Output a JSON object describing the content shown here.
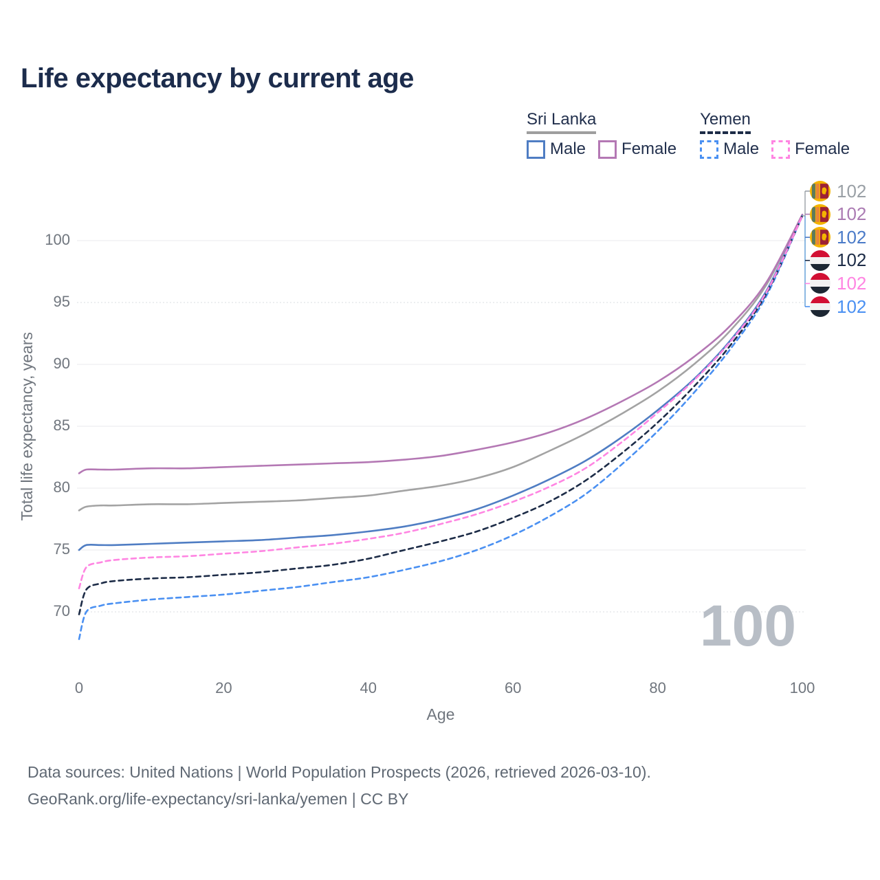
{
  "title": "Life expectancy by current age",
  "legend": {
    "groups": [
      {
        "country": "Sri Lanka",
        "line_style": "solid",
        "underline_color": "#9e9e9e",
        "items": [
          {
            "label": "Male",
            "color": "#4f7dc3",
            "dashed": false
          },
          {
            "label": "Female",
            "color": "#b478b4",
            "dashed": false
          }
        ]
      },
      {
        "country": "Yemen",
        "line_style": "dashed",
        "underline_color": "#1d2c47",
        "items": [
          {
            "label": "Male",
            "color": "#4a90f2",
            "dashed": true
          },
          {
            "label": "Female",
            "color": "#ff85e2",
            "dashed": true
          }
        ]
      }
    ]
  },
  "chart_data": {
    "type": "line",
    "title": "Life expectancy by current age",
    "xlabel": "Age",
    "ylabel": "Total life expectancy, years",
    "x": [
      0,
      1,
      3,
      5,
      10,
      15,
      20,
      25,
      30,
      35,
      40,
      45,
      50,
      55,
      60,
      65,
      70,
      75,
      80,
      85,
      90,
      95,
      100
    ],
    "xlim": [
      0,
      100
    ],
    "ylim": [
      66,
      103
    ],
    "x_ticks": [
      0,
      20,
      40,
      60,
      80,
      100
    ],
    "y_ticks": [
      70,
      75,
      80,
      85,
      90,
      95,
      100
    ],
    "dotted_gridlines": [
      70,
      95
    ],
    "grid": "horizontal",
    "legend_position": "top-right",
    "series": [
      {
        "name": "Sri Lanka — All",
        "country": "Sri Lanka",
        "sex": "all",
        "line_style": "solid",
        "color": "#a3a3a3",
        "values": [
          78.2,
          78.5,
          78.6,
          78.6,
          78.7,
          78.7,
          78.8,
          78.9,
          79.0,
          79.2,
          79.4,
          79.8,
          80.2,
          80.8,
          81.7,
          83.0,
          84.4,
          86.0,
          87.8,
          90.0,
          92.7,
          96.4,
          102.1
        ]
      },
      {
        "name": "Sri Lanka — Male",
        "country": "Sri Lanka",
        "sex": "male",
        "line_style": "solid",
        "color": "#4f7dc3",
        "values": [
          75.0,
          75.4,
          75.4,
          75.4,
          75.5,
          75.6,
          75.7,
          75.8,
          76.0,
          76.2,
          76.5,
          76.9,
          77.5,
          78.3,
          79.4,
          80.7,
          82.2,
          84.1,
          86.3,
          88.8,
          91.9,
          95.9,
          102.0
        ]
      },
      {
        "name": "Sri Lanka — Female",
        "country": "Sri Lanka",
        "sex": "female",
        "line_style": "solid",
        "color": "#b478b4",
        "values": [
          81.2,
          81.5,
          81.5,
          81.5,
          81.6,
          81.6,
          81.7,
          81.8,
          81.9,
          82.0,
          82.1,
          82.3,
          82.6,
          83.1,
          83.7,
          84.5,
          85.6,
          87.0,
          88.6,
          90.6,
          93.1,
          96.6,
          102.1
        ]
      },
      {
        "name": "Yemen — Male",
        "country": "Yemen",
        "sex": "male",
        "line_style": "dashed",
        "color": "#4a90f2",
        "values": [
          67.8,
          70.0,
          70.5,
          70.7,
          71.0,
          71.2,
          71.4,
          71.7,
          72.0,
          72.4,
          72.8,
          73.4,
          74.1,
          75.0,
          76.2,
          77.7,
          79.5,
          81.9,
          84.6,
          87.7,
          91.2,
          95.5,
          102.0
        ]
      },
      {
        "name": "Yemen — All",
        "country": "Yemen",
        "sex": "all",
        "line_style": "dashed",
        "color": "#1d2c47",
        "values": [
          69.8,
          71.8,
          72.3,
          72.5,
          72.7,
          72.8,
          73.0,
          73.2,
          73.5,
          73.8,
          74.3,
          75.0,
          75.7,
          76.5,
          77.6,
          78.9,
          80.6,
          82.8,
          85.3,
          88.2,
          91.5,
          95.7,
          102.0
        ]
      },
      {
        "name": "Yemen — Female",
        "country": "Yemen",
        "sex": "female",
        "line_style": "dashed",
        "color": "#ff85e2",
        "values": [
          71.9,
          73.6,
          74.0,
          74.2,
          74.4,
          74.5,
          74.7,
          74.9,
          75.2,
          75.5,
          75.9,
          76.4,
          77.1,
          77.9,
          78.9,
          80.1,
          81.6,
          83.7,
          86.1,
          88.7,
          91.8,
          95.8,
          102.0
        ]
      }
    ]
  },
  "endpoint_labels": {
    "rows": [
      {
        "flag": "lk",
        "country": "Sri Lanka",
        "value": "102",
        "color": "#9aa0a6"
      },
      {
        "flag": "lk",
        "country": "Sri Lanka",
        "value": "102",
        "color": "#ab7bb3"
      },
      {
        "flag": "lk",
        "country": "Sri Lanka",
        "value": "102",
        "color": "#4b7bc8"
      },
      {
        "flag": "ye",
        "country": "Yemen",
        "value": "102",
        "color": "#1d2c47"
      },
      {
        "flag": "ye",
        "country": "Yemen",
        "value": "102",
        "color": "#ff85e2"
      },
      {
        "flag": "ye",
        "country": "Yemen",
        "value": "102",
        "color": "#4a90f2"
      }
    ]
  },
  "watermark": "100",
  "footer": {
    "line1": "Data sources: United Nations | World Population Prospects (2026, retrieved 2026-03-10).",
    "line2": "GeoRank.org/life-expectancy/sri-lanka/yemen | CC BY"
  }
}
